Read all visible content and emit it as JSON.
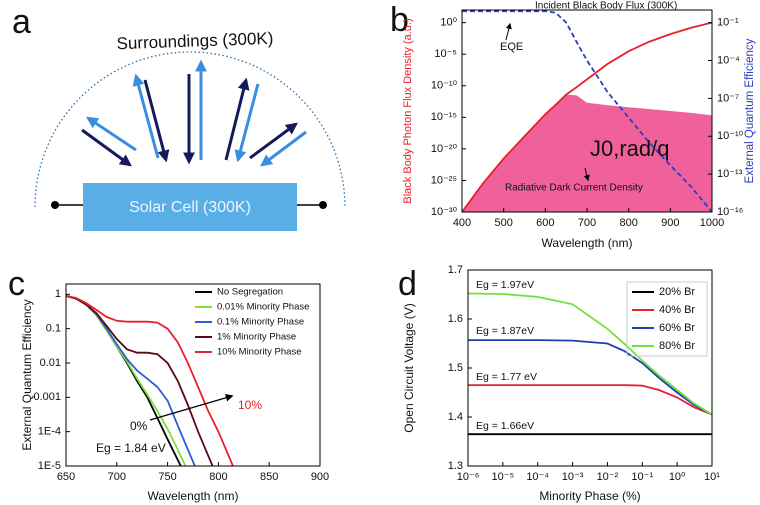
{
  "diagram": {
    "label": "a",
    "surroundings": "Surroundings (300K)",
    "cell": "Solar Cell (300K)"
  },
  "chart_data": [
    {
      "type": "line",
      "label": "b",
      "xlabel": "Wavelength (nm)",
      "ylabel": "Black Body Photon Flux Density (a.u.)",
      "y2label": "External Quantum Efficiency",
      "annotations": [
        "EQE",
        "J0,rad/q"
      ],
      "x": [
        400,
        450,
        500,
        550,
        600,
        625,
        650,
        675,
        700,
        750,
        800,
        850,
        900,
        950,
        1000
      ],
      "xlim": [
        400,
        1000
      ],
      "xticks": [
        400,
        500,
        600,
        700,
        800,
        900,
        1000
      ],
      "yscale": "log",
      "ylim": [
        1e-30,
        100
      ],
      "yticks": [
        {
          "value": 1,
          "label": "10⁰"
        },
        {
          "value": 1e-05,
          "label": "10⁻⁵"
        },
        {
          "value": 1e-10,
          "label": "10⁻¹⁰"
        },
        {
          "value": 1e-15,
          "label": "10⁻¹⁵"
        },
        {
          "value": 1e-20,
          "label": "10⁻²⁰"
        },
        {
          "value": 1e-25,
          "label": "10⁻²⁵"
        },
        {
          "value": 1e-30,
          "label": "10⁻³⁰"
        }
      ],
      "y2scale": "log",
      "y2lim": [
        1e-16,
        1
      ],
      "y2ticks": [
        {
          "value": 0.1,
          "label": "10⁻¹"
        },
        {
          "value": 0.0001,
          "label": "10⁻⁴"
        },
        {
          "value": 1e-07,
          "label": "10⁻⁷"
        },
        {
          "value": 1e-10,
          "label": "10⁻¹⁰"
        },
        {
          "value": 1e-13,
          "label": "10⁻¹³"
        },
        {
          "value": 1e-16,
          "label": "10⁻¹⁶"
        }
      ],
      "series": [
        {
          "name": "Radiative Dark Current Density",
          "color": "#f0609a",
          "area": true,
          "values": [
            1e-30,
            3e-26,
            3e-22,
            1e-18,
            3e-15,
            1e-13,
            4e-12,
            3e-12,
            2e-13,
            8e-14,
            4e-14,
            2e-14,
            1e-14,
            5e-15,
            2e-15
          ]
        },
        {
          "name": "Incident Black Body Flux (300K)",
          "color": "#e8202a",
          "values": [
            1e-30,
            3e-26,
            3e-22,
            1e-18,
            3e-15,
            1e-13,
            4e-12,
            6e-11,
            1e-09,
            3e-07,
            3e-05,
            0.001,
            0.015,
            0.15,
            1
          ]
        },
        {
          "name": "EQE",
          "color": "#2a3fbf",
          "dash": true,
          "axis": "y2",
          "values": [
            0.8,
            0.8,
            0.8,
            0.8,
            0.8,
            0.6,
            0.1,
            0.003,
            0.0001,
            3e-07,
            3e-09,
            3e-11,
            5e-13,
            1e-14,
            1e-16
          ]
        }
      ]
    },
    {
      "type": "line",
      "label": "c",
      "xlabel": "Wavelength (nm)",
      "ylabel": "External Quantum Efficiency",
      "annotations": [
        "0%",
        "10%",
        "Eg = 1.84 eV"
      ],
      "legend": "upper right",
      "x": [
        650,
        660,
        670,
        680,
        690,
        700,
        710,
        720,
        730,
        740,
        750,
        760,
        770,
        780,
        790,
        800,
        810,
        820
      ],
      "xlim": [
        650,
        900
      ],
      "xticks": [
        650,
        700,
        750,
        800,
        850,
        900
      ],
      "yscale": "log",
      "ylim": [
        1e-05,
        2
      ],
      "yticks": [
        1,
        0.1,
        0.01,
        0.001,
        {
          "value": 0.0001,
          "label": "1E-4"
        },
        {
          "value": 1e-05,
          "label": "1E-5"
        }
      ],
      "series": [
        {
          "name": "No Segregation",
          "color": "#000000",
          "values": [
            0.9,
            0.75,
            0.5,
            0.25,
            0.09,
            0.03,
            0.01,
            0.003,
            0.001,
            0.00025,
            6e-05,
            1.5e-05,
            4e-06,
            null,
            null,
            null,
            null,
            null
          ]
        },
        {
          "name": "0.01% Minority Phase",
          "color": "#7ee03a",
          "values": [
            0.9,
            0.75,
            0.5,
            0.25,
            0.09,
            0.03,
            0.011,
            0.0035,
            0.0012,
            0.0004,
            0.00012,
            3e-05,
            7e-06,
            null,
            null,
            null,
            null,
            null
          ]
        },
        {
          "name": "0.1% Minority Phase",
          "color": "#2a5fcf",
          "values": [
            0.9,
            0.75,
            0.5,
            0.26,
            0.1,
            0.035,
            0.013,
            0.006,
            0.0035,
            0.002,
            0.0008,
            0.00015,
            3e-05,
            6e-06,
            null,
            null,
            null,
            null
          ]
        },
        {
          "name": "1% Minority Phase",
          "color": "#5a0a10",
          "values": [
            0.9,
            0.75,
            0.5,
            0.28,
            0.12,
            0.05,
            0.025,
            0.02,
            0.02,
            0.018,
            0.01,
            0.003,
            0.0006,
            0.0001,
            2e-05,
            4e-06,
            null,
            null
          ]
        },
        {
          "name": "10% Minority Phase",
          "color": "#e8202a",
          "values": [
            0.9,
            0.78,
            0.55,
            0.35,
            0.22,
            0.17,
            0.16,
            0.16,
            0.16,
            0.15,
            0.1,
            0.04,
            0.01,
            0.002,
            0.0004,
            0.0001,
            2e-05,
            4e-06
          ]
        }
      ]
    },
    {
      "type": "line",
      "label": "d",
      "xlabel": "Minority Phase (%)",
      "ylabel": "Open Circuit Voltage (V)",
      "annotations": [
        "Eg = 1.97eV",
        "Eg = 1.87eV",
        "Eg = 1.77 eV",
        "Eg = 1.66eV"
      ],
      "legend": "upper right",
      "x": [
        1e-06,
        1e-05,
        0.0001,
        0.001,
        0.01,
        0.03,
        0.1,
        0.3,
        1,
        3,
        10
      ],
      "xscale": "log",
      "xlim": [
        1e-06,
        10
      ],
      "xticks": [
        {
          "value": 1e-06,
          "label": "10⁻⁶"
        },
        {
          "value": 1e-05,
          "label": "10⁻⁵"
        },
        {
          "value": 0.0001,
          "label": "10⁻⁴"
        },
        {
          "value": 0.001,
          "label": "10⁻³"
        },
        {
          "value": 0.01,
          "label": "10⁻²"
        },
        {
          "value": 0.1,
          "label": "10⁻¹"
        },
        {
          "value": 1,
          "label": "10⁰"
        },
        {
          "value": 10,
          "label": "10¹"
        }
      ],
      "ylim": [
        1.3,
        1.7
      ],
      "yticks": [
        1.3,
        1.4,
        1.5,
        1.6,
        1.7
      ],
      "series": [
        {
          "name": "20% Br",
          "color": "#000000",
          "values": [
            1.365,
            1.365,
            1.365,
            1.365,
            1.365,
            1.365,
            1.365,
            1.365,
            1.365,
            1.365,
            1.365
          ]
        },
        {
          "name": "40% Br",
          "color": "#e8202a",
          "values": [
            1.465,
            1.465,
            1.465,
            1.465,
            1.465,
            1.465,
            1.464,
            1.455,
            1.44,
            1.42,
            1.405
          ]
        },
        {
          "name": "60% Br",
          "color": "#1f3fb0",
          "values": [
            1.557,
            1.557,
            1.557,
            1.556,
            1.55,
            1.535,
            1.51,
            1.48,
            1.45,
            1.425,
            1.405
          ]
        },
        {
          "name": "80% Br",
          "color": "#70e040",
          "values": [
            1.652,
            1.651,
            1.645,
            1.63,
            1.58,
            1.55,
            1.515,
            1.485,
            1.455,
            1.428,
            1.405
          ]
        }
      ]
    }
  ]
}
